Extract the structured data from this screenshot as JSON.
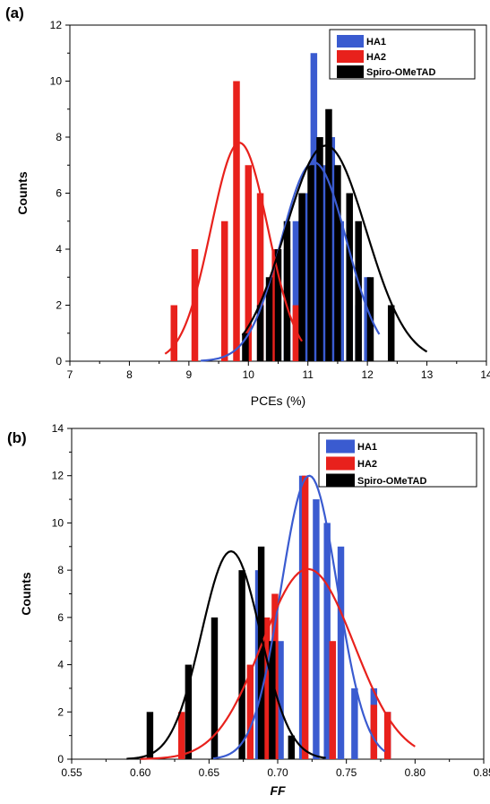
{
  "colors": {
    "HA1": "#3a5bd0",
    "HA2": "#e8211c",
    "Spiro": "#000000"
  },
  "chart_data": [
    {
      "type": "bar",
      "panel_label": "(a)",
      "xlabel": "PCEs (%)",
      "xlabel_italic": false,
      "ylabel": "Counts",
      "xlim": [
        7,
        14
      ],
      "ylim": [
        0,
        12
      ],
      "xticks": [
        "7",
        "8",
        "9",
        "10",
        "11",
        "12",
        "13",
        "14"
      ],
      "yticks": [
        "0",
        "2",
        "4",
        "6",
        "8",
        "10",
        "12"
      ],
      "legend_position": "top-right",
      "series": [
        {
          "name": "HA1",
          "color": "HA1",
          "bars": [
            [
              10.65,
              4
            ],
            [
              10.8,
              5
            ],
            [
              10.95,
              6
            ],
            [
              11.1,
              11
            ],
            [
              11.25,
              7
            ],
            [
              11.4,
              8
            ],
            [
              11.55,
              5
            ],
            [
              11.7,
              4
            ],
            [
              11.85,
              2
            ],
            [
              12.0,
              3
            ]
          ],
          "fit": {
            "mu": 11.1,
            "sigma": 0.55,
            "peak": 7.1,
            "range": [
              9.2,
              12.2
            ]
          }
        },
        {
          "name": "HA2",
          "color": "HA2",
          "bars": [
            [
              8.75,
              2
            ],
            [
              9.1,
              4
            ],
            [
              9.6,
              5
            ],
            [
              9.8,
              10
            ],
            [
              10.0,
              7
            ],
            [
              10.2,
              6
            ],
            [
              10.45,
              4
            ],
            [
              10.8,
              2
            ]
          ],
          "fit": {
            "mu": 9.85,
            "sigma": 0.48,
            "peak": 7.8,
            "range": [
              8.6,
              10.9
            ]
          }
        },
        {
          "name": "Spiro-OMeTAD",
          "color": "Spiro",
          "bars": [
            [
              9.95,
              1
            ],
            [
              10.2,
              2
            ],
            [
              10.35,
              3
            ],
            [
              10.5,
              4
            ],
            [
              10.65,
              5
            ],
            [
              10.9,
              6
            ],
            [
              11.05,
              7
            ],
            [
              11.2,
              8
            ],
            [
              11.35,
              9
            ],
            [
              11.5,
              7
            ],
            [
              11.7,
              6
            ],
            [
              11.85,
              5
            ],
            [
              12.05,
              3
            ],
            [
              12.4,
              2
            ]
          ],
          "fit": {
            "mu": 11.3,
            "sigma": 0.68,
            "peak": 7.7,
            "range": [
              9.9,
              13.0
            ]
          }
        }
      ]
    },
    {
      "type": "bar",
      "panel_label": "(b)",
      "xlabel": "FF",
      "xlabel_italic": true,
      "ylabel": "Counts",
      "xlim": [
        0.55,
        0.85
      ],
      "ylim": [
        0,
        14
      ],
      "xticks": [
        "0.55",
        "0.60",
        "0.65",
        "0.70",
        "0.75",
        "0.80",
        "0.85"
      ],
      "yticks": [
        "0",
        "2",
        "4",
        "6",
        "8",
        "10",
        "12",
        "14"
      ],
      "legend_position": "top-right",
      "series": [
        {
          "name": "HA1",
          "color": "HA1",
          "bars": [
            [
              0.654,
              1
            ],
            [
              0.686,
              8
            ],
            [
              0.702,
              5
            ],
            [
              0.718,
              12
            ],
            [
              0.728,
              11
            ],
            [
              0.736,
              10
            ],
            [
              0.746,
              9
            ],
            [
              0.756,
              3
            ],
            [
              0.77,
              3
            ],
            [
              0.78,
              2
            ]
          ],
          "fit": {
            "mu": 0.723,
            "sigma": 0.0205,
            "peak": 12.0,
            "range": [
              0.653,
              0.778
            ]
          }
        },
        {
          "name": "HA2",
          "color": "HA2",
          "bars": [
            [
              0.63,
              2
            ],
            [
              0.68,
              4
            ],
            [
              0.692,
              6
            ],
            [
              0.698,
              7
            ],
            [
              0.72,
              12
            ],
            [
              0.74,
              5
            ],
            [
              0.77,
              2.3
            ],
            [
              0.78,
              2
            ]
          ],
          "fit": {
            "mu": 0.722,
            "sigma": 0.0335,
            "peak": 8.05,
            "range": [
              0.6,
              0.8
            ]
          }
        },
        {
          "name": "Spiro-OMeTAD",
          "color": "Spiro",
          "bars": [
            [
              0.607,
              2
            ],
            [
              0.635,
              4
            ],
            [
              0.654,
              6
            ],
            [
              0.674,
              8
            ],
            [
              0.688,
              9
            ],
            [
              0.696,
              5
            ],
            [
              0.71,
              1
            ]
          ],
          "fit": {
            "mu": 0.666,
            "sigma": 0.0215,
            "peak": 8.8,
            "range": [
              0.59,
              0.735
            ]
          }
        }
      ]
    }
  ]
}
